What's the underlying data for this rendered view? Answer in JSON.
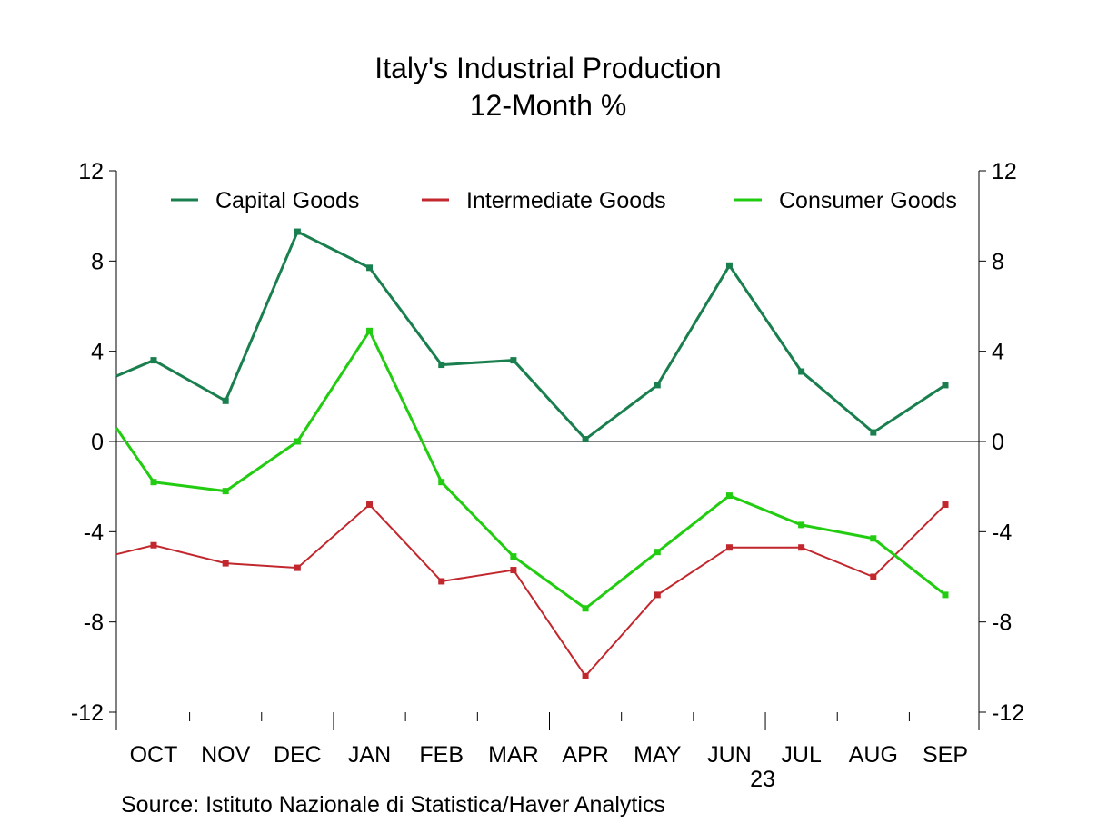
{
  "chart_data": {
    "type": "line",
    "title": "Italy's Industrial Production",
    "subtitle": "12-Month %",
    "source": "Source:  Istituto Nazionale di Statistica/Haver Analytics",
    "year_label": "23",
    "x_labels": [
      "OCT",
      "NOV",
      "DEC",
      "JAN",
      "FEB",
      "MAR",
      "APR",
      "MAY",
      "JUN",
      "JUL",
      "AUG",
      "SEP"
    ],
    "ylim": [
      -12,
      12
    ],
    "yticks": [
      12,
      8,
      4,
      0,
      -4,
      -8,
      -12
    ],
    "ytick_labels": [
      "12",
      "8",
      "4",
      "0",
      "-4",
      "-8",
      "-12"
    ],
    "grid": false,
    "legend_position": "top",
    "series": [
      {
        "name": "Capital Goods",
        "color": "#1a7f4e",
        "start_value": 2.9,
        "values": [
          3.6,
          1.8,
          9.3,
          7.7,
          3.4,
          3.6,
          0.1,
          2.5,
          7.8,
          3.1,
          0.4,
          2.5
        ]
      },
      {
        "name": "Intermediate Goods",
        "color": "#c1272d",
        "start_value": -5.0,
        "values": [
          -4.6,
          -5.4,
          -5.6,
          -2.8,
          -6.2,
          -5.7,
          -10.4,
          -6.8,
          -4.7,
          -4.7,
          -6.0,
          -2.8
        ]
      },
      {
        "name": "Consumer Goods",
        "color": "#22cc11",
        "start_value": 0.6,
        "values": [
          -1.8,
          -2.2,
          0.0,
          4.9,
          -1.8,
          -5.1,
          -7.4,
          -4.9,
          -2.4,
          -3.7,
          -4.3,
          -6.8
        ]
      }
    ]
  }
}
